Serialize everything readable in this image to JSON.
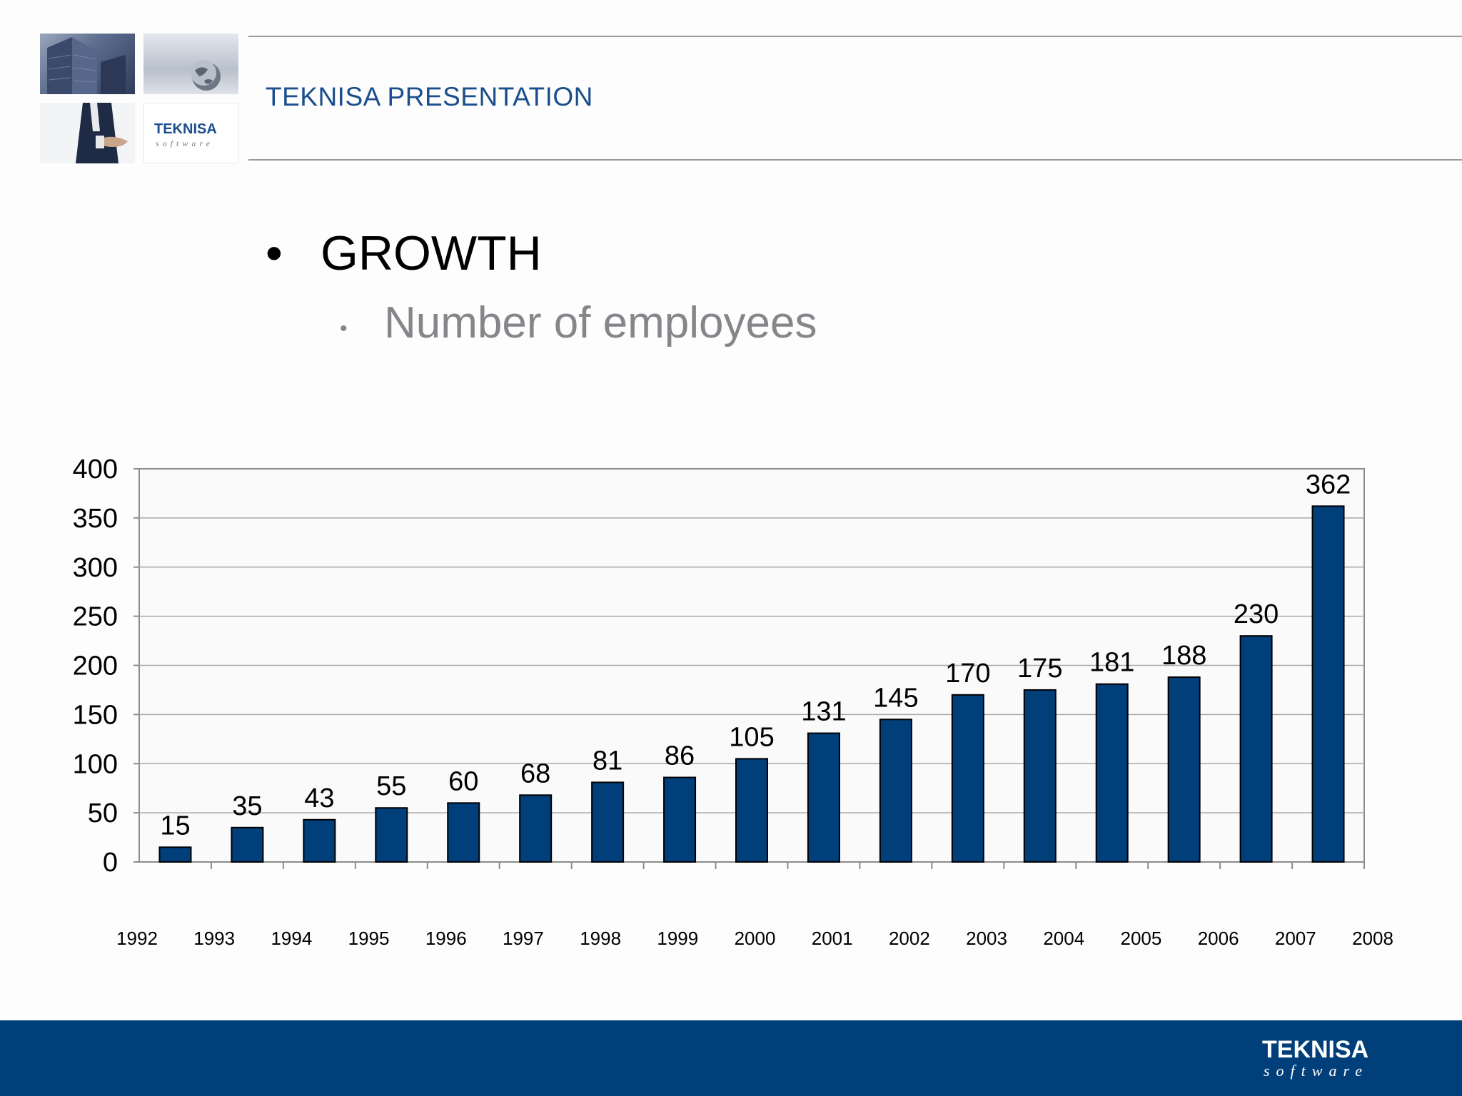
{
  "header": {
    "title": "TEKNISA PRESENTATION",
    "logo_wordmark": "TEKNISA",
    "logo_tagline": "software"
  },
  "content": {
    "bullet_glyph_1": "•",
    "bullet_1": "GROWTH",
    "bullet_glyph_2": "•",
    "bullet_2": "Number of employees"
  },
  "footer": {
    "brand_color": "#003f7a",
    "logo_wordmark": "TEKNISA",
    "logo_tagline": "software"
  },
  "chart_data": {
    "type": "bar",
    "categories": [
      "1992",
      "1993",
      "1994",
      "1995",
      "1996",
      "1997",
      "1998",
      "1999",
      "2000",
      "2001",
      "2002",
      "2003",
      "2004",
      "2005",
      "2006",
      "2007",
      "2008"
    ],
    "values": [
      15,
      35,
      43,
      55,
      60,
      68,
      81,
      86,
      105,
      131,
      145,
      170,
      175,
      181,
      188,
      230,
      362
    ],
    "ylim": [
      0,
      400
    ],
    "yticks": [
      0,
      50,
      100,
      150,
      200,
      250,
      300,
      350,
      400
    ],
    "grid": true,
    "bar_color": "#003f7a",
    "title": "",
    "xlabel": "",
    "ylabel": ""
  }
}
